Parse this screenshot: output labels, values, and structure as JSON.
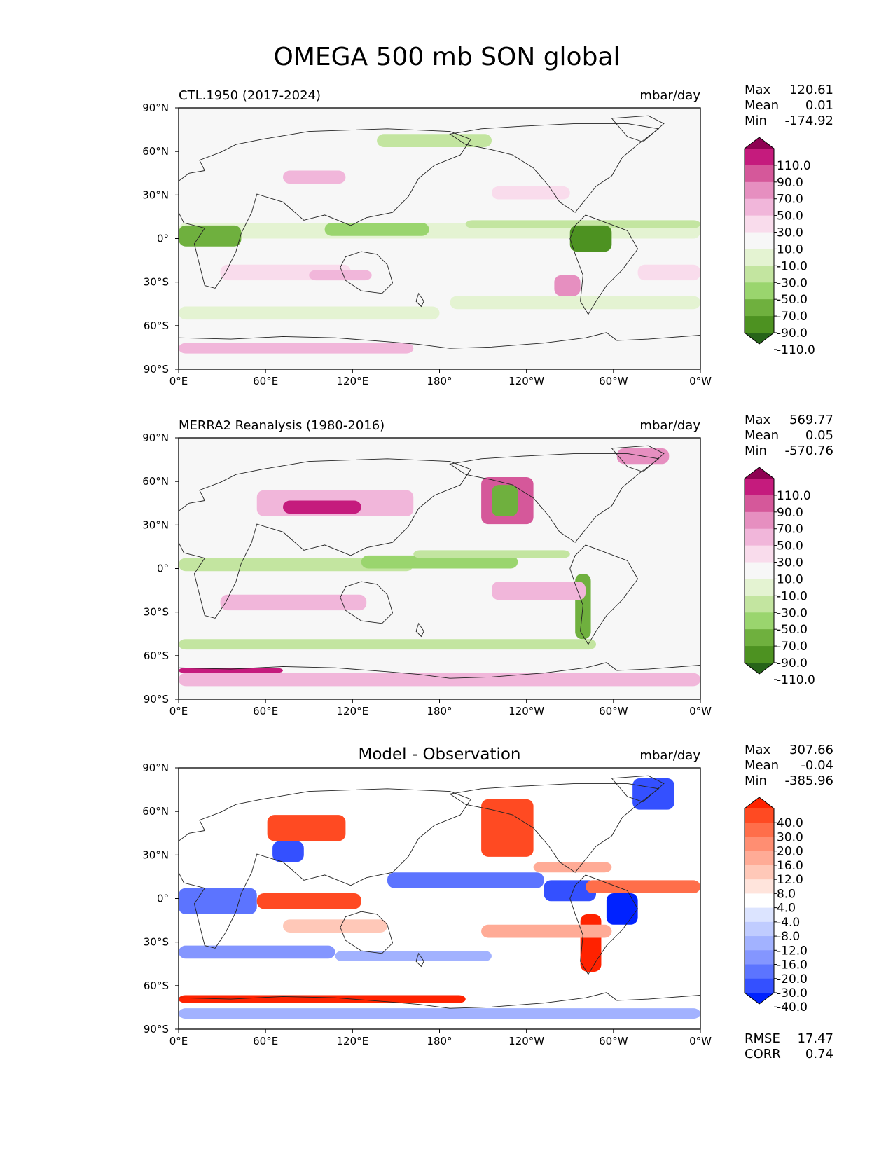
{
  "figure": {
    "title": "OMEGA 500 mb SON global"
  },
  "axes": {
    "lat_ticks": [
      "90°N",
      "60°N",
      "30°N",
      "0°",
      "30°S",
      "60°S",
      "90°S"
    ],
    "lon_ticks": [
      "0°E",
      "60°E",
      "120°E",
      "180°",
      "120°W",
      "60°W",
      "0°W"
    ]
  },
  "panels": [
    {
      "id": "model",
      "left_title": "CTL.1950 (2017-2024)",
      "center_title": "",
      "units": "mbar/day",
      "stats": [
        {
          "label": "Max",
          "value": "120.61"
        },
        {
          "label": "Mean",
          "value": "0.01"
        },
        {
          "label": "Min",
          "value": "-174.92"
        }
      ],
      "colorbar": {
        "labels": [
          "110.0",
          "90.0",
          "70.0",
          "50.0",
          "30.0",
          "10.0",
          "-10.0",
          "-30.0",
          "-50.0",
          "-70.0",
          "-90.0",
          "-110.0"
        ],
        "colors": [
          "#8e0152",
          "#c51b7d",
          "#d5589a",
          "#e68fc0",
          "#f1b6da",
          "#f9dcec",
          "#f7f7f7",
          "#e4f3d2",
          "#c3e5a0",
          "#9ad56e",
          "#6fb03e",
          "#4d9221",
          "#276419"
        ]
      },
      "metrics": []
    },
    {
      "id": "obs",
      "left_title": "MERRA2 Reanalysis (1980-2016)",
      "center_title": "",
      "units": "mbar/day",
      "stats": [
        {
          "label": "Max",
          "value": "569.77"
        },
        {
          "label": "Mean",
          "value": "0.05"
        },
        {
          "label": "Min",
          "value": "-570.76"
        }
      ],
      "colorbar": {
        "labels": [
          "110.0",
          "90.0",
          "70.0",
          "50.0",
          "30.0",
          "10.0",
          "-10.0",
          "-30.0",
          "-50.0",
          "-70.0",
          "-90.0",
          "-110.0"
        ],
        "colors": [
          "#8e0152",
          "#c51b7d",
          "#d5589a",
          "#e68fc0",
          "#f1b6da",
          "#f9dcec",
          "#f7f7f7",
          "#e4f3d2",
          "#c3e5a0",
          "#9ad56e",
          "#6fb03e",
          "#4d9221",
          "#276419"
        ]
      },
      "metrics": []
    },
    {
      "id": "diff",
      "left_title": "",
      "center_title": "Model - Observation",
      "units": "mbar/day",
      "stats": [
        {
          "label": "Max",
          "value": "307.66"
        },
        {
          "label": "Mean",
          "value": "-0.04"
        },
        {
          "label": "Min",
          "value": "-385.96"
        }
      ],
      "colorbar": {
        "labels": [
          "40.0",
          "30.0",
          "20.0",
          "16.0",
          "12.0",
          "8.0",
          "4.0",
          "-4.0",
          "-8.0",
          "-12.0",
          "-16.0",
          "-20.0",
          "-30.0",
          "-40.0"
        ],
        "colors": [
          "#ff2200",
          "#ff4a22",
          "#ff6e4a",
          "#ff8e72",
          "#ffab96",
          "#ffc8b8",
          "#ffe4dc",
          "#ffffff",
          "#dce4ff",
          "#c0ccff",
          "#a2b2ff",
          "#8496ff",
          "#5c74ff",
          "#3450ff",
          "#0022ff"
        ]
      },
      "metrics": [
        {
          "label": "RMSE",
          "value": "17.47"
        },
        {
          "label": "CORR",
          "value": "0.74"
        }
      ]
    }
  ]
}
